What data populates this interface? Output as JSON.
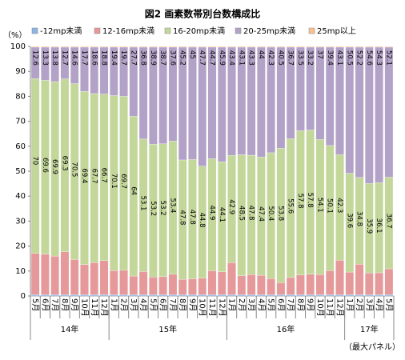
{
  "chart_data": {
    "type": "stacked_bar",
    "title": "図2 画素数帯別台数構成比",
    "y_label": "（%）",
    "note": "（最大パネル）",
    "groups": [
      {
        "label": "14年",
        "categories": [
          "5月",
          "6月",
          "7月",
          "8月",
          "9月",
          "10月",
          "11月",
          "12月"
        ]
      },
      {
        "label": "15年",
        "categories": [
          "1月",
          "2月",
          "3月",
          "4月",
          "5月",
          "6月",
          "7月",
          "8月",
          "9月",
          "10月",
          "11月",
          "12月"
        ]
      },
      {
        "label": "16年",
        "categories": [
          "1月",
          "2月",
          "3月",
          "4月",
          "5月",
          "6月",
          "7月",
          "8月",
          "9月",
          "10月",
          "11月",
          "12月"
        ]
      },
      {
        "label": "17年",
        "categories": [
          "1月",
          "2月",
          "3月",
          "4月",
          "5月"
        ]
      }
    ],
    "ylim": [
      0,
      100
    ],
    "yticks": [
      0,
      10,
      20,
      30,
      40,
      50,
      60,
      70,
      80,
      90,
      100
    ],
    "grid": false,
    "series": [
      {
        "name": "-12mp未満",
        "color": "#8db4e2",
        "show_labels": false,
        "values": [
          0.5,
          0.5,
          0.5,
          0.5,
          0.5,
          0.5,
          0.5,
          0.5,
          0.5,
          0.5,
          0.5,
          0.5,
          0.5,
          0.5,
          0.5,
          0.5,
          0.5,
          0.5,
          0.5,
          0.5,
          0.5,
          0.5,
          0.5,
          0.5,
          0.5,
          0.5,
          0.5,
          0.5,
          0.5,
          0.5,
          0.5,
          0.5,
          0.5,
          0.5,
          0.5,
          0.5,
          0.5
        ]
      },
      {
        "name": "12-16mp未満",
        "color": "#e6999a",
        "show_labels": false,
        "values": [
          16.6,
          16.3,
          15.5,
          17.2,
          14.1,
          12.1,
          12.9,
          13.7,
          9.7,
          9.8,
          7.5,
          9.3,
          7.1,
          7.3,
          8.2,
          6.2,
          6.4,
          6.7,
          9.6,
          9.2,
          12.9,
          7.6,
          8.1,
          7.8,
          6.5,
          4.9,
          6.9,
          7.9,
          8.2,
          8.1,
          9.7,
          13.8,
          9.1,
          12.2,
          8.7,
          8.8,
          10.4
        ]
      },
      {
        "name": "16-20mp未満",
        "color": "#c4d79b",
        "show_labels": true,
        "values": [
          70.0,
          69.6,
          69.9,
          69.3,
          70.5,
          69.4,
          67.7,
          66.7,
          70.1,
          69.7,
          64.0,
          53.1,
          53.2,
          53.2,
          53.4,
          47.8,
          47.8,
          44.8,
          44.9,
          44.1,
          42.9,
          48.5,
          47.8,
          47.4,
          50.4,
          53.8,
          55.6,
          57.8,
          57.8,
          54.1,
          50.1,
          42.3,
          39.6,
          34.8,
          35.9,
          36.1,
          36.7
        ]
      },
      {
        "name": "20-25mp未満",
        "color": "#b3a2c7",
        "show_labels": true,
        "values": [
          12.6,
          13.3,
          13.8,
          12.7,
          14.6,
          17.7,
          18.6,
          18.8,
          19.4,
          19.7,
          27.7,
          36.8,
          38.9,
          38.7,
          37.6,
          45.2,
          45.0,
          47.7,
          44.7,
          45.9,
          43.4,
          43.1,
          43.3,
          44.0,
          42.3,
          40.5,
          36.7,
          33.5,
          33.2,
          37.0,
          39.4,
          43.1,
          50.5,
          52.2,
          54.6,
          54.3,
          52.1
        ]
      },
      {
        "name": "25mp以上",
        "color": "#fac090",
        "show_labels": false,
        "values": [
          0.3,
          0.3,
          0.3,
          0.3,
          0.3,
          0.3,
          0.3,
          0.3,
          0.3,
          0.3,
          0.3,
          0.3,
          0.3,
          0.3,
          0.3,
          0.3,
          0.3,
          0.3,
          0.3,
          0.3,
          0.3,
          0.3,
          0.3,
          0.3,
          0.3,
          0.3,
          0.3,
          0.3,
          0.3,
          0.3,
          0.3,
          0.3,
          0.3,
          0.3,
          0.3,
          0.3,
          0.3
        ]
      }
    ]
  }
}
